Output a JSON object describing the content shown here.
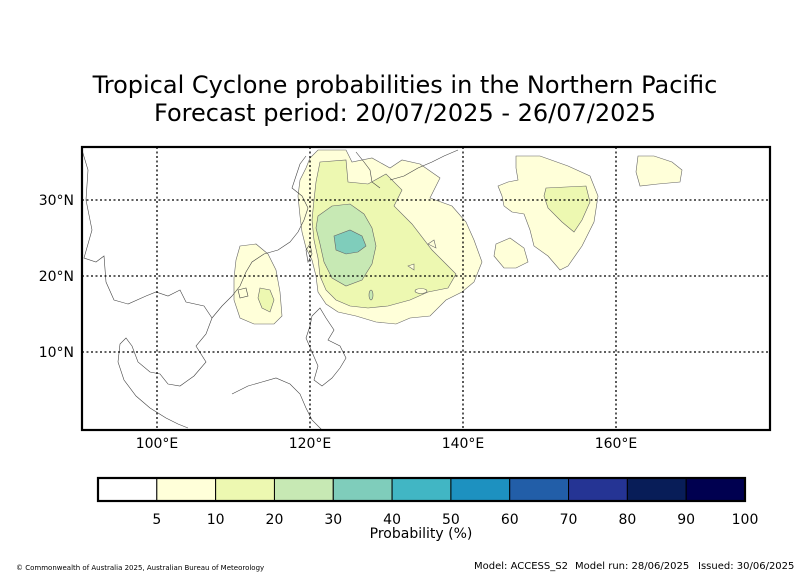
{
  "title": {
    "line1": "Tropical Cyclone probabilities in the Northern Pacific",
    "line2": "Forecast period: 20/07/2025 - 26/07/2025"
  },
  "map": {
    "lon_range": [
      90,
      180
    ],
    "lat_range": [
      0,
      37
    ],
    "gridlines_lon": [
      100,
      120,
      140,
      160
    ],
    "gridlines_lat": [
      10,
      20,
      30
    ],
    "lon_tick_labels": [
      "100°E",
      "120°E",
      "140°E",
      "160°E"
    ],
    "lat_tick_labels": [
      "10°N",
      "20°N",
      "30°N"
    ],
    "grid_style": "dotted"
  },
  "colorbar": {
    "label": "Probability (%)",
    "ticks": [
      "5",
      "10",
      "20",
      "30",
      "40",
      "50",
      "60",
      "70",
      "80",
      "90",
      "100"
    ],
    "colors": [
      "#ffffff",
      "#ffffd9",
      "#edf8b1",
      "#c7e9b4",
      "#7fcdbb",
      "#41b6c4",
      "#1d91c0",
      "#225ea8",
      "#253494",
      "#081d58",
      "#000050"
    ]
  },
  "footer": {
    "copyright": "© Commonwealth of Australia 2025, Australian Bureau of Meteorology",
    "model": "Model: ACCESS_S2",
    "model_run": "Model run: 28/06/2025",
    "issued": "Issued: 30/06/2025"
  }
}
